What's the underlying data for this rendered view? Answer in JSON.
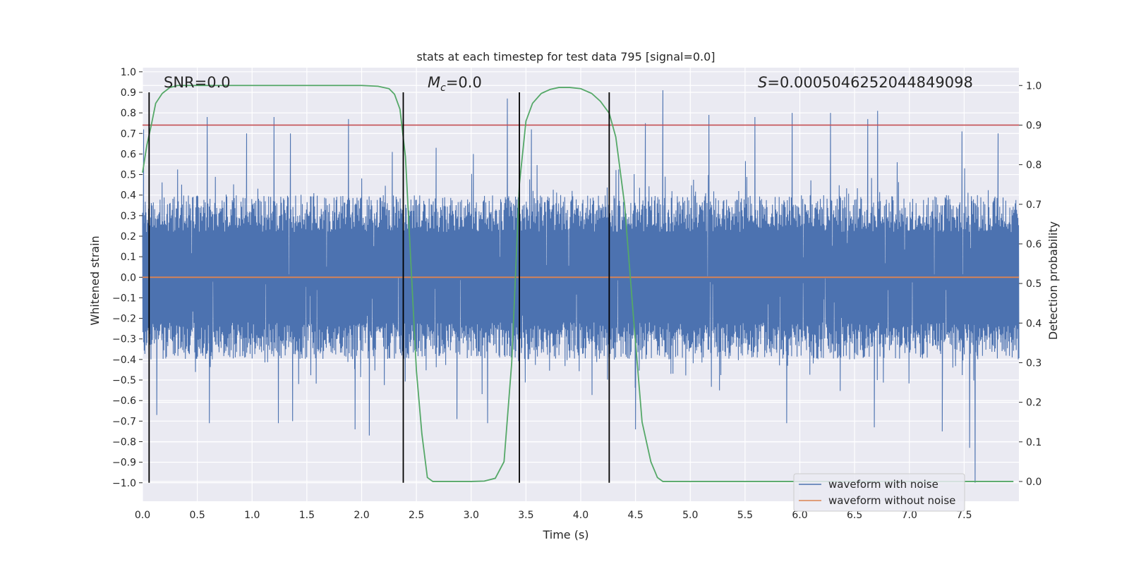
{
  "chart_data": {
    "type": "line",
    "title": "stats at each timestep for test data 795 [signal=0.0]",
    "xlabel": "Time (s)",
    "ylabel": "Whitened strain",
    "y2label": "Detection probability",
    "xlim": [
      0.0,
      8.0
    ],
    "ylim": [
      -1.09,
      1.02
    ],
    "y2lim": [
      -0.05,
      1.045
    ],
    "xticks": [
      "0.0",
      "0.5",
      "1.0",
      "1.5",
      "2.0",
      "2.5",
      "3.0",
      "3.5",
      "4.0",
      "4.5",
      "5.0",
      "5.5",
      "6.0",
      "6.5",
      "7.0",
      "7.5"
    ],
    "xtick_values": [
      0.0,
      0.5,
      1.0,
      1.5,
      2.0,
      2.5,
      3.0,
      3.5,
      4.0,
      4.5,
      5.0,
      5.5,
      6.0,
      6.5,
      7.0,
      7.5
    ],
    "yticks": [
      "1.0",
      "0.9",
      "0.8",
      "0.7",
      "0.6",
      "0.5",
      "0.4",
      "0.3",
      "0.2",
      "0.1",
      "0.0",
      "−0.1",
      "−0.2",
      "−0.3",
      "−0.4",
      "−0.5",
      "−0.6",
      "−0.7",
      "−0.8",
      "−0.9",
      "−1.0"
    ],
    "ytick_values": [
      1.0,
      0.9,
      0.8,
      0.7,
      0.6,
      0.5,
      0.4,
      0.3,
      0.2,
      0.1,
      0.0,
      -0.1,
      -0.2,
      -0.3,
      -0.4,
      -0.5,
      -0.6,
      -0.7,
      -0.8,
      -0.9,
      -1.0
    ],
    "y2ticks": [
      "1.0",
      "0.9",
      "0.8",
      "0.7",
      "0.6",
      "0.5",
      "0.4",
      "0.3",
      "0.2",
      "0.1",
      "0.0"
    ],
    "y2tick_values": [
      1.0,
      0.9,
      0.8,
      0.7,
      0.6,
      0.5,
      0.4,
      0.3,
      0.2,
      0.1,
      0.0
    ],
    "annotations": {
      "snr": "SNR=0.0",
      "mc_symbol": "M",
      "mc_sub": "c",
      "mc_value": "=0.0",
      "s_symbol": "S",
      "s_value": "=0.0005046252044849098"
    },
    "threshold": 0.9,
    "vertical_lines": [
      0.06,
      2.38,
      3.44,
      4.26
    ],
    "series": [
      {
        "name": "waveform with noise",
        "color": "#4c72b0",
        "axis": "left",
        "noise_envelope": {
          "typical_abs": 0.4,
          "max_peak": 0.91,
          "min_trough": -1.0
        },
        "peaks": [
          {
            "x": 0.01,
            "y": 0.72
          },
          {
            "x": 0.59,
            "y": 0.78
          },
          {
            "x": 0.95,
            "y": 0.7
          },
          {
            "x": 1.2,
            "y": 0.78
          },
          {
            "x": 1.35,
            "y": 0.7
          },
          {
            "x": 1.88,
            "y": 0.77
          },
          {
            "x": 2.28,
            "y": 0.61
          },
          {
            "x": 2.68,
            "y": 0.63
          },
          {
            "x": 3.02,
            "y": 0.6
          },
          {
            "x": 3.33,
            "y": 0.87
          },
          {
            "x": 3.55,
            "y": 0.72
          },
          {
            "x": 4.59,
            "y": 0.75
          },
          {
            "x": 4.75,
            "y": 0.91
          },
          {
            "x": 5.17,
            "y": 0.79
          },
          {
            "x": 5.59,
            "y": 0.78
          },
          {
            "x": 5.93,
            "y": 0.8
          },
          {
            "x": 6.28,
            "y": 0.8
          },
          {
            "x": 6.62,
            "y": 0.77
          },
          {
            "x": 6.71,
            "y": 0.81
          },
          {
            "x": 7.48,
            "y": 0.71
          },
          {
            "x": 7.81,
            "y": 0.7
          }
        ],
        "troughs": [
          {
            "x": 0.13,
            "y": -0.67
          },
          {
            "x": 0.61,
            "y": -0.71
          },
          {
            "x": 1.24,
            "y": -0.71
          },
          {
            "x": 1.37,
            "y": -0.7
          },
          {
            "x": 1.94,
            "y": -0.74
          },
          {
            "x": 2.07,
            "y": -0.77
          },
          {
            "x": 2.87,
            "y": -0.69
          },
          {
            "x": 3.15,
            "y": -0.71
          },
          {
            "x": 4.5,
            "y": -0.74
          },
          {
            "x": 5.88,
            "y": -0.71
          },
          {
            "x": 6.68,
            "y": -0.73
          },
          {
            "x": 7.3,
            "y": -0.75
          },
          {
            "x": 7.55,
            "y": -0.83
          },
          {
            "x": 7.6,
            "y": -1.0
          }
        ]
      },
      {
        "name": "waveform without noise",
        "color": "#dd8452",
        "axis": "left",
        "x": [
          0.0,
          8.0
        ],
        "y": [
          0.0,
          0.0
        ]
      },
      {
        "name": "detection probability",
        "color": "#55a868",
        "axis": "right",
        "x": [
          0.0,
          0.04,
          0.08,
          0.12,
          0.18,
          0.25,
          0.32,
          0.4,
          1.0,
          1.6,
          2.0,
          2.15,
          2.25,
          2.3,
          2.35,
          2.4,
          2.45,
          2.5,
          2.55,
          2.6,
          2.65,
          3.0,
          3.12,
          3.22,
          3.3,
          3.37,
          3.44,
          3.5,
          3.56,
          3.64,
          3.72,
          3.8,
          3.9,
          4.0,
          4.1,
          4.18,
          4.26,
          4.32,
          4.4,
          4.48,
          4.56,
          4.64,
          4.7,
          4.75,
          5.0,
          6.0,
          7.0,
          7.95
        ],
        "y": [
          0.78,
          0.85,
          0.9,
          0.955,
          0.98,
          0.995,
          1.0,
          1.0,
          1.0,
          1.0,
          1.0,
          0.998,
          0.992,
          0.978,
          0.94,
          0.82,
          0.55,
          0.28,
          0.12,
          0.01,
          0.0,
          0.0,
          0.001,
          0.008,
          0.05,
          0.3,
          0.75,
          0.91,
          0.955,
          0.98,
          0.99,
          0.995,
          0.995,
          0.992,
          0.98,
          0.96,
          0.93,
          0.87,
          0.7,
          0.42,
          0.15,
          0.05,
          0.01,
          0.0,
          0.0,
          0.0,
          0.0,
          0.0
        ]
      },
      {
        "name": "threshold",
        "color": "#c44e52",
        "axis": "right",
        "x": [
          0.0,
          8.0
        ],
        "y": [
          0.9,
          0.9
        ]
      }
    ],
    "legend": {
      "position": "lower right",
      "entries": [
        {
          "label": "waveform with noise",
          "color": "#4c72b0"
        },
        {
          "label": "waveform without noise",
          "color": "#dd8452"
        }
      ]
    },
    "colors": {
      "background": "#eaeaf2",
      "grid": "#ffffff",
      "vertical_line": "#000000"
    }
  }
}
